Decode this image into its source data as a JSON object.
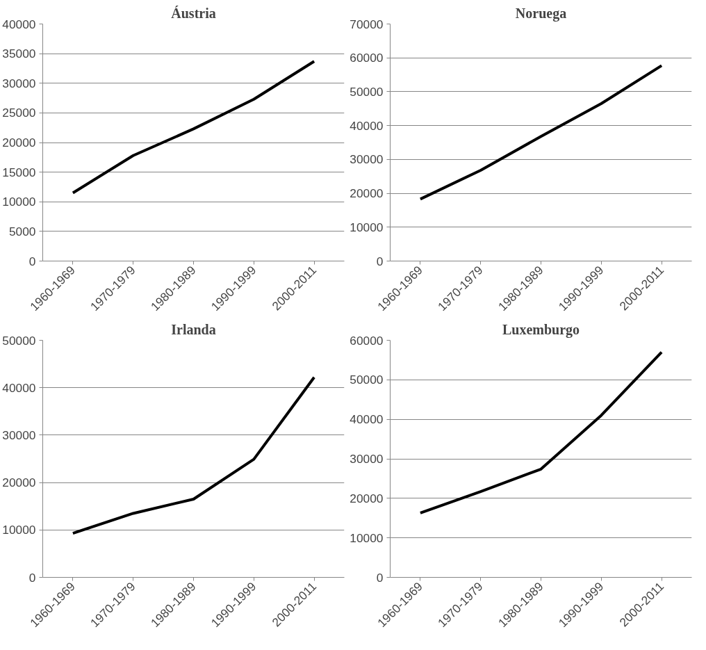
{
  "chart_data": [
    {
      "type": "line",
      "title": "Áustria",
      "categories": [
        "1960-1969",
        "1970-1979",
        "1980-1989",
        "1990-1999",
        "2000-2011"
      ],
      "values": [
        11500,
        17800,
        22300,
        27300,
        33700
      ],
      "color": "#000000",
      "ylim": [
        0,
        40000
      ],
      "yticks": [
        0,
        5000,
        10000,
        15000,
        20000,
        25000,
        30000,
        35000,
        40000
      ],
      "grid": "y"
    },
    {
      "type": "line",
      "title": "Noruega",
      "categories": [
        "1960-1969",
        "1970-1979",
        "1980-1989",
        "1990-1999",
        "2000-2011"
      ],
      "values": [
        18300,
        26800,
        36800,
        46500,
        57700
      ],
      "color": "#000000",
      "ylim": [
        0,
        70000
      ],
      "yticks": [
        0,
        10000,
        20000,
        30000,
        40000,
        50000,
        60000,
        70000
      ],
      "grid": "y"
    },
    {
      "type": "line",
      "title": "Irlanda",
      "categories": [
        "1960-1969",
        "1970-1979",
        "1980-1989",
        "1990-1999",
        "2000-2011"
      ],
      "values": [
        9300,
        13500,
        16500,
        24900,
        42200
      ],
      "color": "#000000",
      "ylim": [
        0,
        50000
      ],
      "yticks": [
        0,
        10000,
        20000,
        30000,
        40000,
        50000
      ],
      "grid": "y"
    },
    {
      "type": "line",
      "title": "Luxemburgo",
      "categories": [
        "1960-1969",
        "1970-1979",
        "1980-1989",
        "1990-1999",
        "2000-2011"
      ],
      "values": [
        16300,
        21700,
        27400,
        41000,
        57000
      ],
      "color": "#000000",
      "ylim": [
        0,
        60000
      ],
      "yticks": [
        0,
        10000,
        20000,
        30000,
        40000,
        50000,
        60000
      ],
      "grid": "y"
    }
  ]
}
